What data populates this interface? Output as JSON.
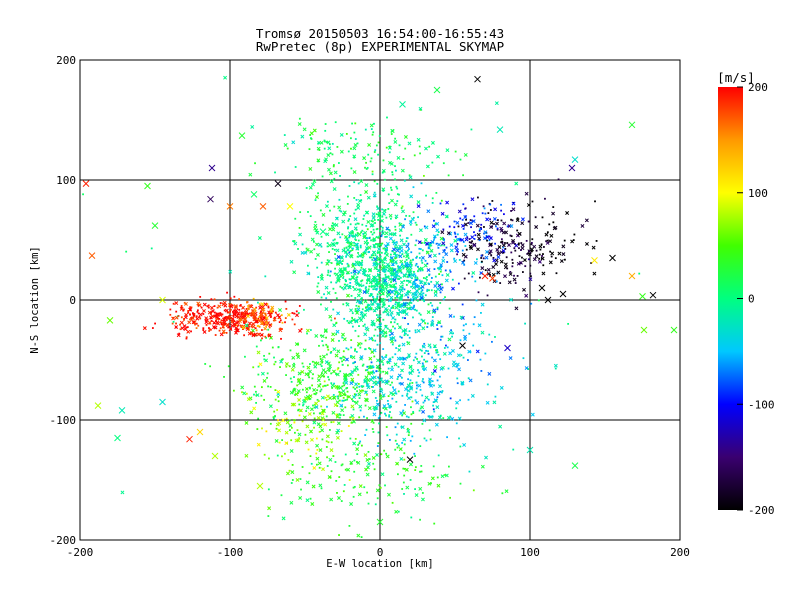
{
  "chart_data": {
    "type": "scatter",
    "title": "Tromsø 20150503 16:54:00-16:55:43",
    "subtitle": "RwPretec (8p) EXPERIMENTAL SKYMAP",
    "xlabel": "E-W location [km]",
    "ylabel": "N-S location [km]",
    "xlim": [
      -200,
      200
    ],
    "ylim": [
      -200,
      200
    ],
    "x_ticks": [
      "-200",
      "-100",
      "0",
      "100",
      "200"
    ],
    "y_ticks": [
      "-200",
      "-100",
      "0",
      "100",
      "200"
    ],
    "grid": true,
    "markers": [
      "dot",
      "x"
    ],
    "colorbar": {
      "label": "[m/s]",
      "range": [
        -200,
        200
      ],
      "ticks": [
        "200",
        "100",
        "0",
        "-100",
        "-200"
      ],
      "colormap": [
        "#000000",
        "#3a0070",
        "#0000ff",
        "#00c8ff",
        "#00ff80",
        "#40ff00",
        "#ffff00",
        "#ff9900",
        "#ff0000"
      ]
    },
    "clusters": [
      {
        "x": -5,
        "y": 40,
        "sx": 22,
        "sy": 32,
        "v": 0,
        "n": 650
      },
      {
        "x": 5,
        "y": 5,
        "sx": 16,
        "sy": 18,
        "v": -10,
        "n": 350
      },
      {
        "x": -35,
        "y": -70,
        "sx": 28,
        "sy": 22,
        "v": 30,
        "n": 420
      },
      {
        "x": 12,
        "y": -65,
        "sx": 22,
        "sy": 30,
        "v": -30,
        "n": 300
      },
      {
        "x": -5,
        "y": -150,
        "sx": 35,
        "sy": 20,
        "v": 30,
        "n": 160
      },
      {
        "x": -10,
        "y": 125,
        "sx": 30,
        "sy": 15,
        "v": 15,
        "n": 130
      },
      {
        "x": 30,
        "y": 30,
        "sx": 22,
        "sy": 22,
        "v": -60,
        "n": 220
      },
      {
        "x": -100,
        "y": -15,
        "sx": 20,
        "sy": 7,
        "v": 195,
        "n": 380
      },
      {
        "x": -80,
        "y": -15,
        "sx": 8,
        "sy": 8,
        "v": 150,
        "n": 60
      },
      {
        "x": 85,
        "y": 45,
        "sx": 15,
        "sy": 18,
        "v": -180,
        "n": 170
      },
      {
        "x": 110,
        "y": 45,
        "sx": 15,
        "sy": 15,
        "v": -200,
        "n": 60
      },
      {
        "x": 60,
        "y": 60,
        "sx": 15,
        "sy": 12,
        "v": -100,
        "n": 80
      },
      {
        "x": 40,
        "y": -50,
        "sx": 25,
        "sy": 30,
        "v": -50,
        "n": 110
      },
      {
        "x": -50,
        "y": -110,
        "sx": 20,
        "sy": 20,
        "v": 80,
        "n": 90
      },
      {
        "x": 0,
        "y": 0,
        "sx": 90,
        "sy": 80,
        "v": 0,
        "n": 90
      }
    ],
    "outlier_x_markers": [
      {
        "x": -196,
        "y": 97,
        "v": 190
      },
      {
        "x": -192,
        "y": 37,
        "v": 170
      },
      {
        "x": -180,
        "y": -17,
        "v": 60
      },
      {
        "x": -188,
        "y": -88,
        "v": 80
      },
      {
        "x": -175,
        "y": -115,
        "v": 0
      },
      {
        "x": -172,
        "y": -92,
        "v": -20
      },
      {
        "x": -155,
        "y": 95,
        "v": 40
      },
      {
        "x": -150,
        "y": 62,
        "v": 30
      },
      {
        "x": -145,
        "y": 0,
        "v": 90
      },
      {
        "x": -127,
        "y": -116,
        "v": 190
      },
      {
        "x": -120,
        "y": -110,
        "v": 120
      },
      {
        "x": -113,
        "y": 84,
        "v": -160
      },
      {
        "x": -112,
        "y": 110,
        "v": -140
      },
      {
        "x": -110,
        "y": -130,
        "v": 80
      },
      {
        "x": -100,
        "y": 78,
        "v": 160
      },
      {
        "x": -92,
        "y": 137,
        "v": 30
      },
      {
        "x": -84,
        "y": 88,
        "v": 10
      },
      {
        "x": -68,
        "y": 97,
        "v": -190
      },
      {
        "x": -60,
        "y": 78,
        "v": 100
      },
      {
        "x": -38,
        "y": 57,
        "v": 0
      },
      {
        "x": 15,
        "y": 163,
        "v": -10
      },
      {
        "x": 38,
        "y": 175,
        "v": 20
      },
      {
        "x": 65,
        "y": 184,
        "v": -200
      },
      {
        "x": 80,
        "y": 142,
        "v": -20
      },
      {
        "x": 128,
        "y": 110,
        "v": -140
      },
      {
        "x": 130,
        "y": 117,
        "v": -30
      },
      {
        "x": 155,
        "y": 35,
        "v": -200
      },
      {
        "x": 143,
        "y": 33,
        "v": 110
      },
      {
        "x": 168,
        "y": 20,
        "v": 140
      },
      {
        "x": 168,
        "y": 146,
        "v": 30
      },
      {
        "x": 175,
        "y": 3,
        "v": 40
      },
      {
        "x": 182,
        "y": 4,
        "v": -200
      },
      {
        "x": 176,
        "y": -25,
        "v": 60
      },
      {
        "x": 196,
        "y": -25,
        "v": 40
      },
      {
        "x": 130,
        "y": -138,
        "v": 20
      },
      {
        "x": 100,
        "y": -125,
        "v": -20
      },
      {
        "x": 85,
        "y": -40,
        "v": -120
      },
      {
        "x": 20,
        "y": -133,
        "v": -200
      },
      {
        "x": 55,
        "y": -38,
        "v": -200
      },
      {
        "x": -145,
        "y": -85,
        "v": -30
      },
      {
        "x": 108,
        "y": 10,
        "v": -200
      },
      {
        "x": 122,
        "y": 5,
        "v": -200
      },
      {
        "x": 112,
        "y": 0,
        "v": -200
      },
      {
        "x": 70,
        "y": 20,
        "v": 190
      },
      {
        "x": 75,
        "y": 18,
        "v": 180
      },
      {
        "x": 0,
        "y": -185,
        "v": 30
      },
      {
        "x": -80,
        "y": -155,
        "v": 80
      },
      {
        "x": -78,
        "y": 78,
        "v": 170
      }
    ],
    "seed": 20150503
  }
}
